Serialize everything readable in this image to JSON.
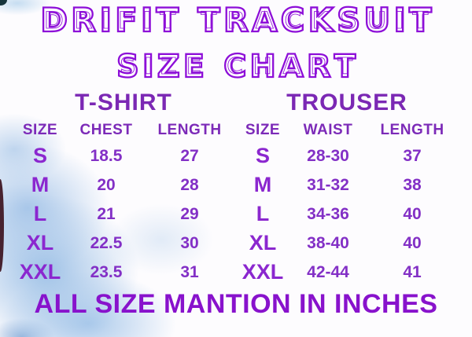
{
  "title_line1": "DRIFIT TRACKSUIT",
  "title_line2": "SIZE CHART",
  "footer": "ALL SIZE MANTION IN INCHES",
  "colors": {
    "title_outline": "#8d0ed8",
    "table_heading": "#7b28b4",
    "table_text": "#8330c6",
    "footer_text": "#8812cc",
    "watercolor_blue": "#9cbfe6"
  },
  "chart_data": [
    {
      "type": "table",
      "title": "T-SHIRT",
      "columns": [
        "SIZE",
        "CHEST",
        "LENGTH"
      ],
      "rows": [
        [
          "S",
          "18.5",
          "27"
        ],
        [
          "M",
          "20",
          "28"
        ],
        [
          "L",
          "21",
          "29"
        ],
        [
          "XL",
          "22.5",
          "30"
        ],
        [
          "XXL",
          "23.5",
          "31"
        ]
      ],
      "units": "inches"
    },
    {
      "type": "table",
      "title": "TROUSER",
      "columns": [
        "SIZE",
        "WAIST",
        "LENGTH"
      ],
      "rows": [
        [
          "S",
          "28-30",
          "37"
        ],
        [
          "M",
          "31-32",
          "38"
        ],
        [
          "L",
          "34-36",
          "40"
        ],
        [
          "XL",
          "38-40",
          "40"
        ],
        [
          "XXL",
          "42-44",
          "41"
        ]
      ],
      "units": "inches"
    }
  ]
}
